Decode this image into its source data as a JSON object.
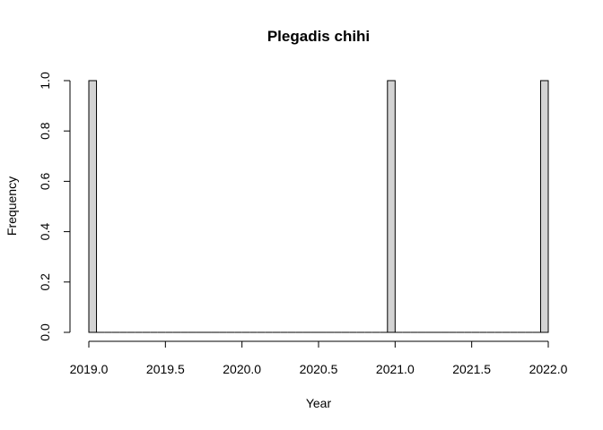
{
  "chart_data": {
    "type": "bar",
    "title": "Plegadis chihi",
    "xlabel": "Year",
    "ylabel": "Frequency",
    "xlim": [
      2019.0,
      2022.0
    ],
    "ylim": [
      0.0,
      1.0
    ],
    "x_ticks": [
      "2019.0",
      "2019.5",
      "2020.0",
      "2020.5",
      "2021.0",
      "2021.5",
      "2022.0"
    ],
    "y_ticks": [
      "0.0",
      "0.2",
      "0.4",
      "0.6",
      "0.8",
      "1.0"
    ],
    "bin_width": 0.05,
    "bins": [
      {
        "start": 2019.0,
        "end": 2019.05,
        "count": 1
      },
      {
        "start": 2020.95,
        "end": 2021.0,
        "count": 1
      },
      {
        "start": 2021.95,
        "end": 2022.0,
        "count": 1
      }
    ],
    "bar_fill": "#d3d3d3",
    "bar_stroke": "#000000",
    "grid": false,
    "legend": "none"
  }
}
